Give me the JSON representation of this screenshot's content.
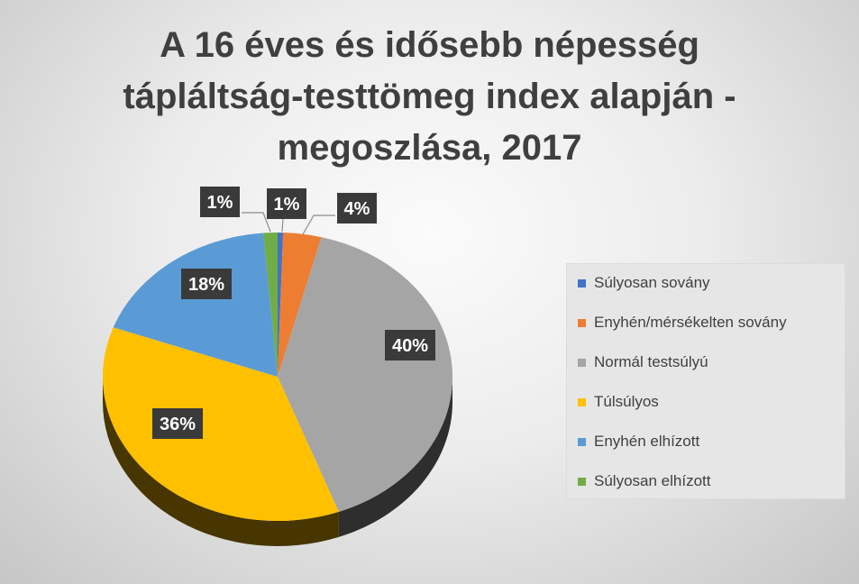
{
  "chart_data": {
    "type": "pie",
    "title_lines": [
      "A 16 éves és idősebb népesség",
      "tápláltság-testtömeg index alapján -",
      "megoszlása, 2017"
    ],
    "categories": [
      "Súlyosan sovány",
      "Enyhén/mérsékelten sovány",
      "Normál testsúlyú",
      "Túlsúlyos",
      "Enyhén elhízott",
      "Súlyosan elhízott"
    ],
    "values": [
      0.5,
      3.5,
      40,
      36,
      18,
      1.3
    ],
    "data_labels": [
      "1%",
      "4%",
      "40%",
      "36%",
      "18%",
      "1%"
    ],
    "colors": [
      "#4472c4",
      "#ed7d31",
      "#a5a5a5",
      "#ffc000",
      "#5b9bd5",
      "#70ad47"
    ],
    "legend_position": "right"
  }
}
